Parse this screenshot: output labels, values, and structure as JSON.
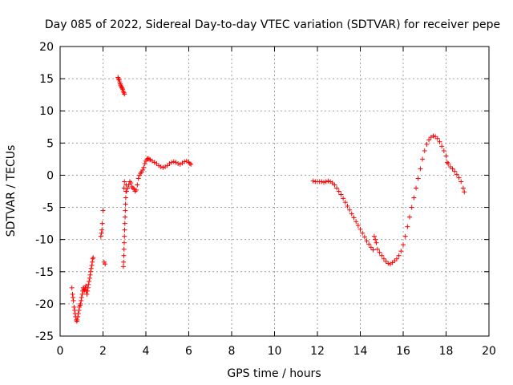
{
  "chart_data": {
    "type": "scatter",
    "title": "Day 085 of 2022, Sidereal Day-to-day VTEC variation (SDTVAR) for receiver pepe",
    "xlabel": "GPS time / hours",
    "ylabel": "SDTVAR / TECUs",
    "xlim": [
      0,
      20
    ],
    "ylim": [
      -25,
      20
    ],
    "xticks": [
      0,
      2,
      4,
      6,
      8,
      10,
      12,
      14,
      16,
      18,
      20
    ],
    "yticks": [
      -25,
      -20,
      -15,
      -10,
      -5,
      0,
      5,
      10,
      15,
      20
    ],
    "grid": true,
    "marker": "+",
    "colors": {
      "series": "#ff0000",
      "grid": "#a0a0a0",
      "axes": "#000000"
    },
    "series": [
      {
        "name": "SDTVAR",
        "points": [
          [
            0.55,
            -17.5
          ],
          [
            0.58,
            -18.5
          ],
          [
            0.6,
            -19.0
          ],
          [
            0.62,
            -19.5
          ],
          [
            0.65,
            -20.5
          ],
          [
            0.68,
            -21.0
          ],
          [
            0.7,
            -21.5
          ],
          [
            0.72,
            -22.0
          ],
          [
            0.75,
            -22.5
          ],
          [
            0.78,
            -22.7
          ],
          [
            0.8,
            -22.5
          ],
          [
            0.83,
            -22.0
          ],
          [
            0.85,
            -21.5
          ],
          [
            0.88,
            -21.0
          ],
          [
            0.9,
            -20.5
          ],
          [
            0.93,
            -20.2
          ],
          [
            0.95,
            -20.0
          ],
          [
            0.98,
            -19.5
          ],
          [
            1.0,
            -19.0
          ],
          [
            1.03,
            -18.5
          ],
          [
            1.05,
            -18.0
          ],
          [
            1.08,
            -17.5
          ],
          [
            1.1,
            -17.7
          ],
          [
            1.12,
            -18.0
          ],
          [
            1.15,
            -17.8
          ],
          [
            1.18,
            -17.5
          ],
          [
            1.2,
            -17.2
          ],
          [
            1.22,
            -18.0
          ],
          [
            1.25,
            -18.5
          ],
          [
            1.28,
            -18.0
          ],
          [
            1.3,
            -17.5
          ],
          [
            1.32,
            -17.0
          ],
          [
            1.35,
            -16.5
          ],
          [
            1.38,
            -16.0
          ],
          [
            1.4,
            -15.5
          ],
          [
            1.42,
            -15.0
          ],
          [
            1.45,
            -14.5
          ],
          [
            1.48,
            -14.0
          ],
          [
            1.5,
            -13.5
          ],
          [
            1.52,
            -13.0
          ],
          [
            1.54,
            -12.8
          ],
          [
            1.9,
            -9.5
          ],
          [
            1.93,
            -9.0
          ],
          [
            1.95,
            -8.5
          ],
          [
            1.97,
            -7.5
          ],
          [
            2.0,
            -5.5
          ],
          [
            2.05,
            -13.5
          ],
          [
            2.1,
            -13.8
          ],
          [
            2.7,
            15.2
          ],
          [
            2.72,
            15.0
          ],
          [
            2.75,
            14.8
          ],
          [
            2.78,
            14.5
          ],
          [
            2.8,
            14.2
          ],
          [
            2.82,
            14.0
          ],
          [
            2.85,
            13.8
          ],
          [
            2.88,
            13.6
          ],
          [
            2.9,
            13.5
          ],
          [
            2.92,
            13.3
          ],
          [
            2.95,
            13.0
          ],
          [
            2.98,
            12.8
          ],
          [
            3.0,
            12.6
          ],
          [
            2.95,
            -14.2
          ],
          [
            2.96,
            -13.5
          ],
          [
            2.97,
            -12.5
          ],
          [
            2.98,
            -11.5
          ],
          [
            2.99,
            -10.5
          ],
          [
            3.0,
            -9.5
          ],
          [
            3.01,
            -8.5
          ],
          [
            3.02,
            -7.5
          ],
          [
            3.03,
            -6.5
          ],
          [
            3.04,
            -5.5
          ],
          [
            3.05,
            -4.5
          ],
          [
            3.06,
            -3.5
          ],
          [
            3.07,
            -2.5
          ],
          [
            3.08,
            -1.5
          ],
          [
            3.0,
            -1.0
          ],
          [
            2.98,
            -2.0
          ],
          [
            3.1,
            -2.5
          ],
          [
            3.15,
            -2.0
          ],
          [
            3.2,
            -1.5
          ],
          [
            3.25,
            -1.0
          ],
          [
            3.3,
            -1.2
          ],
          [
            3.35,
            -1.8
          ],
          [
            3.4,
            -2.0
          ],
          [
            3.45,
            -2.2
          ],
          [
            3.5,
            -2.5
          ],
          [
            3.55,
            -2.3
          ],
          [
            3.6,
            -1.5
          ],
          [
            3.65,
            -0.5
          ],
          [
            3.7,
            0.0
          ],
          [
            3.75,
            0.3
          ],
          [
            3.8,
            0.5
          ],
          [
            3.85,
            0.8
          ],
          [
            3.9,
            1.2
          ],
          [
            3.95,
            1.8
          ],
          [
            4.0,
            2.2
          ],
          [
            4.05,
            2.5
          ],
          [
            4.1,
            2.6
          ],
          [
            4.15,
            2.5
          ],
          [
            4.2,
            2.4
          ],
          [
            4.3,
            2.2
          ],
          [
            4.4,
            2.0
          ],
          [
            4.5,
            1.8
          ],
          [
            4.6,
            1.5
          ],
          [
            4.7,
            1.3
          ],
          [
            4.8,
            1.2
          ],
          [
            4.9,
            1.3
          ],
          [
            5.0,
            1.5
          ],
          [
            5.1,
            1.8
          ],
          [
            5.2,
            2.0
          ],
          [
            5.3,
            2.1
          ],
          [
            5.4,
            2.0
          ],
          [
            5.5,
            1.8
          ],
          [
            5.6,
            1.7
          ],
          [
            5.7,
            1.9
          ],
          [
            5.8,
            2.1
          ],
          [
            5.9,
            2.2
          ],
          [
            6.0,
            2.0
          ],
          [
            6.05,
            1.8
          ],
          [
            6.1,
            1.7
          ],
          [
            11.8,
            -0.9
          ],
          [
            11.9,
            -1.0
          ],
          [
            12.0,
            -1.0
          ],
          [
            12.1,
            -1.0
          ],
          [
            12.2,
            -1.0
          ],
          [
            12.3,
            -1.1
          ],
          [
            12.4,
            -1.0
          ],
          [
            12.5,
            -0.9
          ],
          [
            12.6,
            -1.0
          ],
          [
            12.7,
            -1.2
          ],
          [
            12.8,
            -1.5
          ],
          [
            12.9,
            -2.0
          ],
          [
            13.0,
            -2.5
          ],
          [
            13.1,
            -3.0
          ],
          [
            13.2,
            -3.6
          ],
          [
            13.3,
            -4.2
          ],
          [
            13.4,
            -4.8
          ],
          [
            13.5,
            -5.4
          ],
          [
            13.6,
            -6.0
          ],
          [
            13.7,
            -6.6
          ],
          [
            13.8,
            -7.2
          ],
          [
            13.9,
            -7.8
          ],
          [
            14.0,
            -8.4
          ],
          [
            14.1,
            -9.0
          ],
          [
            14.2,
            -9.6
          ],
          [
            14.3,
            -10.2
          ],
          [
            14.4,
            -10.7
          ],
          [
            14.5,
            -11.2
          ],
          [
            14.6,
            -11.6
          ],
          [
            14.65,
            -9.5
          ],
          [
            14.7,
            -10.0
          ],
          [
            14.75,
            -10.5
          ],
          [
            14.8,
            -11.5
          ],
          [
            14.9,
            -12.0
          ],
          [
            15.0,
            -12.5
          ],
          [
            15.1,
            -13.0
          ],
          [
            15.2,
            -13.4
          ],
          [
            15.3,
            -13.7
          ],
          [
            15.4,
            -13.8
          ],
          [
            15.5,
            -13.6
          ],
          [
            15.6,
            -13.3
          ],
          [
            15.7,
            -13.0
          ],
          [
            15.8,
            -12.5
          ],
          [
            15.9,
            -11.8
          ],
          [
            16.0,
            -10.8
          ],
          [
            16.1,
            -9.5
          ],
          [
            16.2,
            -8.0
          ],
          [
            16.3,
            -6.5
          ],
          [
            16.4,
            -5.0
          ],
          [
            16.5,
            -3.5
          ],
          [
            16.6,
            -2.0
          ],
          [
            16.7,
            -0.5
          ],
          [
            16.8,
            1.0
          ],
          [
            16.9,
            2.5
          ],
          [
            17.0,
            3.8
          ],
          [
            17.1,
            4.8
          ],
          [
            17.2,
            5.5
          ],
          [
            17.3,
            5.9
          ],
          [
            17.4,
            6.1
          ],
          [
            17.5,
            6.0
          ],
          [
            17.6,
            5.7
          ],
          [
            17.7,
            5.2
          ],
          [
            17.8,
            4.5
          ],
          [
            17.9,
            3.8
          ],
          [
            18.0,
            3.0
          ],
          [
            18.05,
            2.0
          ],
          [
            18.1,
            1.8
          ],
          [
            18.2,
            1.3
          ],
          [
            18.3,
            1.0
          ],
          [
            18.4,
            0.6
          ],
          [
            18.5,
            0.1
          ],
          [
            18.6,
            -0.4
          ],
          [
            18.7,
            -1.0
          ],
          [
            18.8,
            -2.0
          ],
          [
            18.85,
            -2.6
          ]
        ]
      }
    ]
  }
}
